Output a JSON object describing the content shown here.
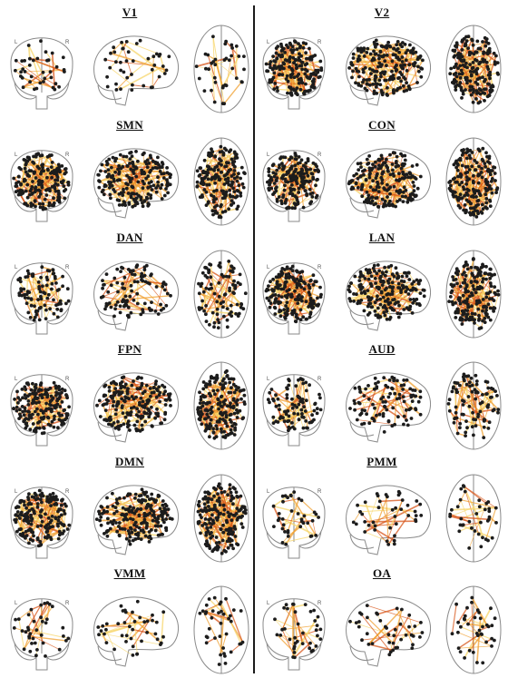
{
  "orientation_labels": {
    "left": "L",
    "right": "R"
  },
  "colors": {
    "node": "#1c1c1c",
    "edge_light": "#f7d66a",
    "edge_mid": "#f0a030",
    "edge_dark": "#d8561a",
    "brain_outline": "#8a8a8a",
    "divider": "#1a1a1a"
  },
  "networks": [
    {
      "id": "V1",
      "label": "V1",
      "column": "left",
      "row": 0,
      "density": "sparse"
    },
    {
      "id": "V2",
      "label": "V2",
      "column": "right",
      "row": 0,
      "density": "dense"
    },
    {
      "id": "SMN",
      "label": "SMN",
      "column": "left",
      "row": 1,
      "density": "dense"
    },
    {
      "id": "CON",
      "label": "CON",
      "column": "right",
      "row": 1,
      "density": "dense"
    },
    {
      "id": "DAN",
      "label": "DAN",
      "column": "left",
      "row": 2,
      "density": "medium"
    },
    {
      "id": "LAN",
      "label": "LAN",
      "column": "right",
      "row": 2,
      "density": "dense"
    },
    {
      "id": "FPN",
      "label": "FPN",
      "column": "left",
      "row": 3,
      "density": "dense"
    },
    {
      "id": "AUD",
      "label": "AUD",
      "column": "right",
      "row": 3,
      "density": "medium"
    },
    {
      "id": "DMN",
      "label": "DMN",
      "column": "left",
      "row": 4,
      "density": "dense"
    },
    {
      "id": "PMM",
      "label": "PMM",
      "column": "right",
      "row": 4,
      "density": "sparse"
    },
    {
      "id": "VMM",
      "label": "VMM",
      "column": "left",
      "row": 5,
      "density": "sparse"
    },
    {
      "id": "OA",
      "label": "OA",
      "column": "right",
      "row": 5,
      "density": "sparse"
    }
  ]
}
